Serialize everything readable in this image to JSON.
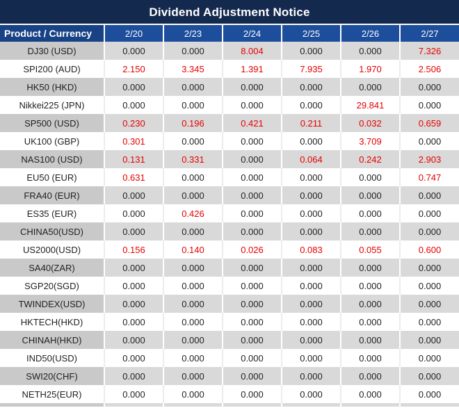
{
  "title": "Dividend Adjustment Notice",
  "chart_data": {
    "type": "table",
    "title": "Dividend Adjustment Notice",
    "columns": [
      "Product / Currency",
      "2/20",
      "2/23",
      "2/24",
      "2/25",
      "2/26",
      "2/27"
    ],
    "rows": [
      {
        "product": "DJ30 (USD)",
        "values": [
          "0.000",
          "0.000",
          "8.004",
          "0.000",
          "0.000",
          "7.326"
        ],
        "red": [
          false,
          false,
          true,
          false,
          false,
          true
        ]
      },
      {
        "product": "SPI200 (AUD)",
        "values": [
          "2.150",
          "3.345",
          "1.391",
          "7.935",
          "1.970",
          "2.506"
        ],
        "red": [
          true,
          true,
          true,
          true,
          true,
          true
        ]
      },
      {
        "product": "HK50 (HKD)",
        "values": [
          "0.000",
          "0.000",
          "0.000",
          "0.000",
          "0.000",
          "0.000"
        ],
        "red": [
          false,
          false,
          false,
          false,
          false,
          false
        ]
      },
      {
        "product": "Nikkei225 (JPN)",
        "values": [
          "0.000",
          "0.000",
          "0.000",
          "0.000",
          "29.841",
          "0.000"
        ],
        "red": [
          false,
          false,
          false,
          false,
          true,
          false
        ]
      },
      {
        "product": "SP500 (USD)",
        "values": [
          "0.230",
          "0.196",
          "0.421",
          "0.211",
          "0.032",
          "0.659"
        ],
        "red": [
          true,
          true,
          true,
          true,
          true,
          true
        ]
      },
      {
        "product": "UK100 (GBP)",
        "values": [
          "0.301",
          "0.000",
          "0.000",
          "0.000",
          "3.709",
          "0.000"
        ],
        "red": [
          true,
          false,
          false,
          false,
          true,
          false
        ]
      },
      {
        "product": "NAS100 (USD)",
        "values": [
          "0.131",
          "0.331",
          "0.000",
          "0.064",
          "0.242",
          "2.903"
        ],
        "red": [
          true,
          true,
          false,
          true,
          true,
          true
        ]
      },
      {
        "product": "EU50 (EUR)",
        "values": [
          "0.631",
          "0.000",
          "0.000",
          "0.000",
          "0.000",
          "0.747"
        ],
        "red": [
          true,
          false,
          false,
          false,
          false,
          true
        ]
      },
      {
        "product": "FRA40 (EUR)",
        "values": [
          "0.000",
          "0.000",
          "0.000",
          "0.000",
          "0.000",
          "0.000"
        ],
        "red": [
          false,
          false,
          false,
          false,
          false,
          false
        ]
      },
      {
        "product": "ES35 (EUR)",
        "values": [
          "0.000",
          "0.426",
          "0.000",
          "0.000",
          "0.000",
          "0.000"
        ],
        "red": [
          false,
          true,
          false,
          false,
          false,
          false
        ]
      },
      {
        "product": "CHINA50(USD)",
        "values": [
          "0.000",
          "0.000",
          "0.000",
          "0.000",
          "0.000",
          "0.000"
        ],
        "red": [
          false,
          false,
          false,
          false,
          false,
          false
        ]
      },
      {
        "product": "US2000(USD)",
        "values": [
          "0.156",
          "0.140",
          "0.026",
          "0.083",
          "0.055",
          "0.600"
        ],
        "red": [
          true,
          true,
          true,
          true,
          true,
          true
        ]
      },
      {
        "product": "SA40(ZAR)",
        "values": [
          "0.000",
          "0.000",
          "0.000",
          "0.000",
          "0.000",
          "0.000"
        ],
        "red": [
          false,
          false,
          false,
          false,
          false,
          false
        ]
      },
      {
        "product": "SGP20(SGD)",
        "values": [
          "0.000",
          "0.000",
          "0.000",
          "0.000",
          "0.000",
          "0.000"
        ],
        "red": [
          false,
          false,
          false,
          false,
          false,
          false
        ]
      },
      {
        "product": "TWINDEX(USD)",
        "values": [
          "0.000",
          "0.000",
          "0.000",
          "0.000",
          "0.000",
          "0.000"
        ],
        "red": [
          false,
          false,
          false,
          false,
          false,
          false
        ]
      },
      {
        "product": "HKTECH(HKD)",
        "values": [
          "0.000",
          "0.000",
          "0.000",
          "0.000",
          "0.000",
          "0.000"
        ],
        "red": [
          false,
          false,
          false,
          false,
          false,
          false
        ]
      },
      {
        "product": "CHINAH(HKD)",
        "values": [
          "0.000",
          "0.000",
          "0.000",
          "0.000",
          "0.000",
          "0.000"
        ],
        "red": [
          false,
          false,
          false,
          false,
          false,
          false
        ]
      },
      {
        "product": "IND50(USD)",
        "values": [
          "0.000",
          "0.000",
          "0.000",
          "0.000",
          "0.000",
          "0.000"
        ],
        "red": [
          false,
          false,
          false,
          false,
          false,
          false
        ]
      },
      {
        "product": "SWI20(CHF)",
        "values": [
          "0.000",
          "0.000",
          "0.000",
          "0.000",
          "0.000",
          "0.000"
        ],
        "red": [
          false,
          false,
          false,
          false,
          false,
          false
        ]
      },
      {
        "product": "NETH25(EUR)",
        "values": [
          "0.000",
          "0.000",
          "0.000",
          "0.000",
          "0.000",
          "0.000"
        ],
        "red": [
          false,
          false,
          false,
          false,
          false,
          false
        ]
      }
    ]
  },
  "colors": {
    "title_bg": "#14294e",
    "product_header_bg": "#174285",
    "date_header_bg": "#1d4e9c",
    "grey_row": "#d9d9d9",
    "grey_row_first": "#c9c9c9",
    "red_value": "#e60000",
    "text": "#1f1f1f"
  }
}
